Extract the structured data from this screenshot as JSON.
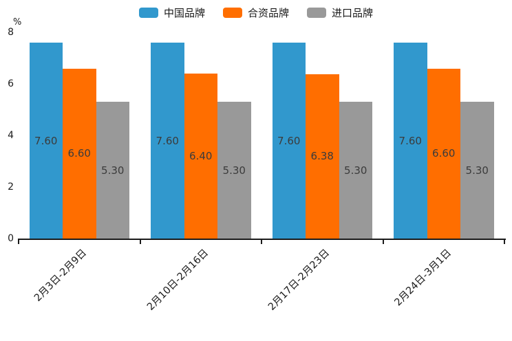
{
  "chart_data": {
    "type": "bar",
    "title": "",
    "xlabel": "",
    "ylabel": "%",
    "ylim": [
      0,
      8
    ],
    "yticks": [
      0,
      2,
      4,
      6,
      8
    ],
    "grid": false,
    "legend_position": "top-center",
    "categories": [
      "2月3日-2月9日",
      "2月10日-2月16日",
      "2月17日-2月23日",
      "2月24日-3月1日"
    ],
    "series": [
      {
        "name": "中国品牌",
        "color": "#3198CD",
        "values": [
          7.6,
          7.6,
          7.6,
          7.6
        ],
        "labels": [
          "7.60",
          "7.60",
          "7.60",
          "7.60"
        ]
      },
      {
        "name": "合资品牌",
        "color": "#FF6E00",
        "values": [
          6.6,
          6.4,
          6.38,
          6.6
        ],
        "labels": [
          "6.60",
          "6.40",
          "6.38",
          "6.60"
        ]
      },
      {
        "name": "进口品牌",
        "color": "#999999",
        "values": [
          5.3,
          5.3,
          5.3,
          5.3
        ],
        "labels": [
          "5.30",
          "5.30",
          "5.30",
          "5.30"
        ]
      }
    ],
    "value_label_color": "#3b3b3b",
    "axis_color": "#1a1a1a",
    "background_color": "#ffffff"
  }
}
